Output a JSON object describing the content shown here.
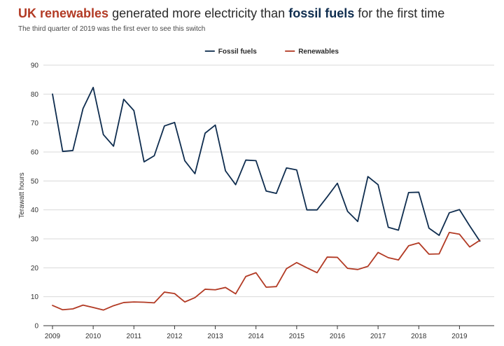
{
  "header": {
    "title_part1": "UK renewables",
    "title_part2": " generated more electricity than ",
    "title_part3": "fossil fuels",
    "title_part4": " for the first time",
    "subtitle": "The third quarter of 2019 was the first ever to see this switch"
  },
  "colors": {
    "renewables": "#b23a24",
    "fossil": "#0f2d4f",
    "grid": "#d9d9d9",
    "axis": "#333333"
  },
  "chart_data": {
    "type": "line",
    "title": "UK renewables generated more electricity than fossil fuels for the first time",
    "subtitle": "The third quarter of 2019 was the first ever to see this switch",
    "xlabel": "",
    "ylabel": "Terawatt hours",
    "xlim": [
      2009,
      2019.75
    ],
    "ylim": [
      0,
      90
    ],
    "yticks": [
      0,
      10,
      20,
      30,
      40,
      50,
      60,
      70,
      80,
      90
    ],
    "xticks": [
      2009,
      2010,
      2011,
      2012,
      2013,
      2014,
      2015,
      2016,
      2017,
      2018,
      2019
    ],
    "grid": true,
    "legend_position": "top-center",
    "x": [
      2009,
      2009.25,
      2009.5,
      2009.75,
      2010,
      2010.25,
      2010.5,
      2010.75,
      2011,
      2011.25,
      2011.5,
      2011.75,
      2012,
      2012.25,
      2012.5,
      2012.75,
      2013,
      2013.25,
      2013.5,
      2013.75,
      2014,
      2014.25,
      2014.5,
      2014.75,
      2015,
      2015.25,
      2015.5,
      2015.75,
      2016,
      2016.25,
      2016.5,
      2016.75,
      2017,
      2017.25,
      2017.5,
      2017.75,
      2018,
      2018.25,
      2018.5,
      2018.75,
      2019,
      2019.25,
      2019.5
    ],
    "series": [
      {
        "name": "Fossil fuels",
        "color_key": "fossil",
        "values": [
          80,
          60.2,
          60.5,
          75,
          82.3,
          66,
          62,
          78.2,
          74.3,
          56.6,
          58.7,
          69,
          70.2,
          57,
          52.5,
          66.5,
          69.3,
          53.5,
          48.7,
          57.2,
          57,
          46.5,
          45.7,
          54.5,
          53.8,
          40,
          40,
          44.5,
          49.2,
          39.5,
          36,
          51.5,
          48.7,
          34,
          33,
          46,
          46.1,
          33.7,
          31.2,
          39,
          40.1,
          34.5,
          29.2
        ]
      },
      {
        "name": "Renewables",
        "color_key": "renewables",
        "values": [
          7,
          5.5,
          5.8,
          7.1,
          6.3,
          5.4,
          6.9,
          8,
          8.2,
          8.1,
          7.9,
          11.6,
          11.1,
          8.2,
          9.7,
          12.6,
          12.4,
          13.2,
          11,
          17,
          18.3,
          13.3,
          13.5,
          19.7,
          21.8,
          20,
          18.3,
          23.7,
          23.6,
          19.8,
          19.4,
          20.5,
          25.3,
          23.5,
          22.7,
          27.6,
          28.6,
          24.7,
          24.8,
          32.2,
          31.6,
          27.2,
          29.5
        ]
      }
    ]
  }
}
